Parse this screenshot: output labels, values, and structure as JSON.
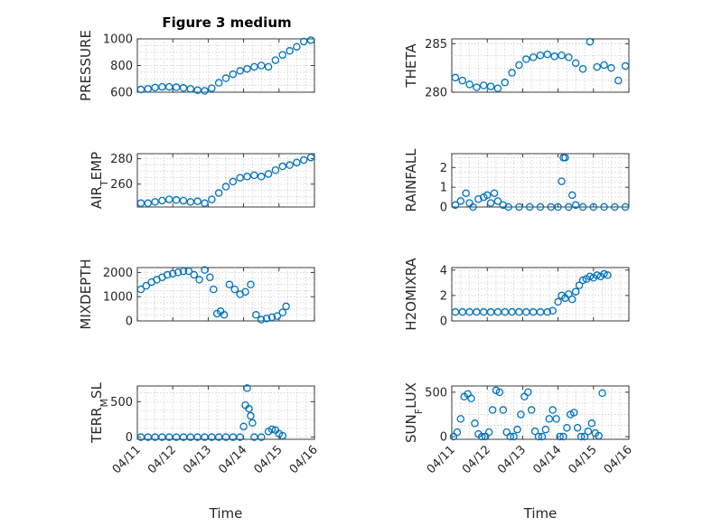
{
  "figure": {
    "title": "Figure 3 medium"
  },
  "chart_data": [
    {
      "type": "scatter",
      "panel": "pressure",
      "ylabel": "PRESSURE",
      "xlabel": "",
      "ylim": [
        600,
        1000
      ],
      "yticks": [
        600,
        800,
        1000
      ],
      "ytick_labels": [
        "600",
        "800",
        "1000"
      ],
      "xlim": [
        0,
        5
      ],
      "grid": true,
      "marker": "open-circle",
      "color": "#0072BD",
      "points": [
        [
          0.1,
          620
        ],
        [
          0.3,
          625
        ],
        [
          0.5,
          635
        ],
        [
          0.7,
          640
        ],
        [
          0.9,
          640
        ],
        [
          1.1,
          637
        ],
        [
          1.3,
          632
        ],
        [
          1.5,
          625
        ],
        [
          1.7,
          615
        ],
        [
          1.9,
          610
        ],
        [
          2.1,
          630
        ],
        [
          2.3,
          670
        ],
        [
          2.5,
          705
        ],
        [
          2.7,
          735
        ],
        [
          2.9,
          760
        ],
        [
          3.1,
          775
        ],
        [
          3.3,
          790
        ],
        [
          3.5,
          800
        ],
        [
          3.7,
          790
        ],
        [
          3.9,
          840
        ],
        [
          4.1,
          880
        ],
        [
          4.3,
          910
        ],
        [
          4.5,
          940
        ],
        [
          4.7,
          980
        ],
        [
          4.9,
          990
        ]
      ]
    },
    {
      "type": "scatter",
      "panel": "theta",
      "ylabel": "THETA",
      "xlabel": "",
      "ylim": [
        280,
        285.5
      ],
      "yticks": [
        280,
        285
      ],
      "ytick_labels": [
        "280",
        "285"
      ],
      "xlim": [
        0,
        5
      ],
      "grid": true,
      "marker": "open-circle",
      "color": "#0072BD",
      "points": [
        [
          0.1,
          281.5
        ],
        [
          0.3,
          281.2
        ],
        [
          0.5,
          280.8
        ],
        [
          0.7,
          280.5
        ],
        [
          0.9,
          280.7
        ],
        [
          1.1,
          280.6
        ],
        [
          1.3,
          280.4
        ],
        [
          1.5,
          281.0
        ],
        [
          1.7,
          282.0
        ],
        [
          1.9,
          282.8
        ],
        [
          2.1,
          283.4
        ],
        [
          2.3,
          283.6
        ],
        [
          2.5,
          283.8
        ],
        [
          2.7,
          283.9
        ],
        [
          2.9,
          283.7
        ],
        [
          3.1,
          283.8
        ],
        [
          3.3,
          283.6
        ],
        [
          3.5,
          283.0
        ],
        [
          3.7,
          282.4
        ],
        [
          3.9,
          285.2
        ],
        [
          4.1,
          282.6
        ],
        [
          4.3,
          282.8
        ],
        [
          4.5,
          282.5
        ],
        [
          4.7,
          281.2
        ],
        [
          4.9,
          282.7
        ]
      ]
    },
    {
      "type": "scatter",
      "panel": "air-temp",
      "ylabel": "AIR_TEMP",
      "xlabel": "",
      "ylim": [
        242,
        284
      ],
      "yticks": [
        260,
        280
      ],
      "ytick_labels": [
        "260",
        "280"
      ],
      "xlim": [
        0,
        5
      ],
      "grid": true,
      "marker": "open-circle",
      "color": "#0072BD",
      "points": [
        [
          0.1,
          245
        ],
        [
          0.3,
          245
        ],
        [
          0.5,
          246
        ],
        [
          0.7,
          247
        ],
        [
          0.9,
          248
        ],
        [
          1.1,
          247.5
        ],
        [
          1.3,
          247
        ],
        [
          1.5,
          246
        ],
        [
          1.7,
          246.5
        ],
        [
          1.9,
          245
        ],
        [
          2.1,
          248
        ],
        [
          2.3,
          253
        ],
        [
          2.5,
          258
        ],
        [
          2.7,
          262
        ],
        [
          2.9,
          265
        ],
        [
          3.1,
          266
        ],
        [
          3.3,
          267
        ],
        [
          3.5,
          266
        ],
        [
          3.7,
          268
        ],
        [
          3.9,
          271
        ],
        [
          4.1,
          274
        ],
        [
          4.3,
          275
        ],
        [
          4.5,
          277
        ],
        [
          4.7,
          279
        ],
        [
          4.9,
          281
        ]
      ]
    },
    {
      "type": "scatter",
      "panel": "rainfall",
      "ylabel": "RAINFALL",
      "xlabel": "",
      "ylim": [
        0,
        2.7
      ],
      "yticks": [
        0,
        1,
        2
      ],
      "ytick_labels": [
        "0",
        "1",
        "2"
      ],
      "xlim": [
        0,
        5
      ],
      "grid": true,
      "marker": "open-circle",
      "color": "#0072BD",
      "points": [
        [
          0.1,
          0.1
        ],
        [
          0.25,
          0.3
        ],
        [
          0.4,
          0.7
        ],
        [
          0.5,
          0.2
        ],
        [
          0.6,
          0.0
        ],
        [
          0.75,
          0.4
        ],
        [
          0.9,
          0.5
        ],
        [
          1.0,
          0.6
        ],
        [
          1.1,
          0.2
        ],
        [
          1.2,
          0.7
        ],
        [
          1.3,
          0.3
        ],
        [
          1.45,
          0.1
        ],
        [
          1.6,
          0.0
        ],
        [
          1.9,
          0.0
        ],
        [
          2.2,
          0.0
        ],
        [
          2.5,
          0.0
        ],
        [
          2.8,
          0.0
        ],
        [
          3.0,
          0.0
        ],
        [
          3.1,
          1.3
        ],
        [
          3.15,
          2.5
        ],
        [
          3.2,
          2.5
        ],
        [
          3.3,
          0.0
        ],
        [
          3.4,
          0.6
        ],
        [
          3.5,
          0.1
        ],
        [
          3.7,
          0.0
        ],
        [
          4.0,
          0.0
        ],
        [
          4.3,
          0.0
        ],
        [
          4.6,
          0.0
        ],
        [
          4.9,
          0.0
        ]
      ]
    },
    {
      "type": "scatter",
      "panel": "mixdepth",
      "ylabel": "MIXDEPTH",
      "xlabel": "",
      "ylim": [
        0,
        2200
      ],
      "yticks": [
        0,
        1000,
        2000
      ],
      "ytick_labels": [
        "0",
        "1000",
        "2000"
      ],
      "xlim": [
        0,
        5
      ],
      "grid": true,
      "marker": "open-circle",
      "color": "#0072BD",
      "points": [
        [
          0.1,
          1300
        ],
        [
          0.25,
          1450
        ],
        [
          0.4,
          1600
        ],
        [
          0.55,
          1700
        ],
        [
          0.7,
          1800
        ],
        [
          0.85,
          1900
        ],
        [
          1.0,
          1950
        ],
        [
          1.15,
          2000
        ],
        [
          1.3,
          2050
        ],
        [
          1.45,
          2050
        ],
        [
          1.6,
          1900
        ],
        [
          1.75,
          1700
        ],
        [
          1.9,
          2100
        ],
        [
          2.05,
          1800
        ],
        [
          2.15,
          1300
        ],
        [
          2.25,
          300
        ],
        [
          2.35,
          400
        ],
        [
          2.45,
          250
        ],
        [
          2.6,
          1500
        ],
        [
          2.75,
          1300
        ],
        [
          2.9,
          1100
        ],
        [
          3.05,
          1200
        ],
        [
          3.2,
          1500
        ],
        [
          3.35,
          250
        ],
        [
          3.5,
          50
        ],
        [
          3.65,
          100
        ],
        [
          3.8,
          150
        ],
        [
          3.95,
          200
        ],
        [
          4.1,
          350
        ],
        [
          4.2,
          600
        ]
      ]
    },
    {
      "type": "scatter",
      "panel": "h2omixra",
      "ylabel": "H2OMIXRA",
      "xlabel": "",
      "ylim": [
        0,
        4.2
      ],
      "yticks": [
        0,
        2,
        4
      ],
      "ytick_labels": [
        "0",
        "2",
        "4"
      ],
      "xlim": [
        0,
        5
      ],
      "grid": true,
      "marker": "open-circle",
      "color": "#0072BD",
      "points": [
        [
          0.1,
          0.7
        ],
        [
          0.3,
          0.7
        ],
        [
          0.5,
          0.7
        ],
        [
          0.7,
          0.7
        ],
        [
          0.9,
          0.7
        ],
        [
          1.1,
          0.7
        ],
        [
          1.3,
          0.7
        ],
        [
          1.5,
          0.7
        ],
        [
          1.7,
          0.7
        ],
        [
          1.9,
          0.7
        ],
        [
          2.1,
          0.7
        ],
        [
          2.3,
          0.7
        ],
        [
          2.5,
          0.7
        ],
        [
          2.7,
          0.7
        ],
        [
          2.85,
          0.8
        ],
        [
          3.0,
          1.5
        ],
        [
          3.1,
          2.0
        ],
        [
          3.2,
          1.8
        ],
        [
          3.3,
          2.1
        ],
        [
          3.4,
          1.7
        ],
        [
          3.5,
          2.3
        ],
        [
          3.6,
          2.8
        ],
        [
          3.7,
          3.2
        ],
        [
          3.8,
          3.3
        ],
        [
          3.9,
          3.5
        ],
        [
          4.0,
          3.4
        ],
        [
          4.1,
          3.6
        ],
        [
          4.2,
          3.5
        ],
        [
          4.3,
          3.7
        ],
        [
          4.4,
          3.6
        ]
      ]
    },
    {
      "type": "scatter",
      "panel": "terr-msl",
      "ylabel": "TERR_MSL",
      "xlabel": "Time",
      "ylim": [
        -30,
        720
      ],
      "yticks": [
        0,
        500
      ],
      "ytick_labels": [
        "0",
        "500"
      ],
      "xlim": [
        0,
        5
      ],
      "xticks": [
        0,
        1,
        2,
        3,
        4,
        5
      ],
      "xtick_labels": [
        "04/11",
        "04/12",
        "04/13",
        "04/14",
        "04/15",
        "04/16"
      ],
      "grid": true,
      "marker": "open-circle",
      "color": "#0072BD",
      "points": [
        [
          0.1,
          0
        ],
        [
          0.3,
          0
        ],
        [
          0.5,
          0
        ],
        [
          0.7,
          0
        ],
        [
          0.9,
          0
        ],
        [
          1.1,
          0
        ],
        [
          1.3,
          0
        ],
        [
          1.5,
          0
        ],
        [
          1.7,
          0
        ],
        [
          1.9,
          0
        ],
        [
          2.1,
          0
        ],
        [
          2.3,
          0
        ],
        [
          2.5,
          0
        ],
        [
          2.7,
          0
        ],
        [
          2.9,
          0
        ],
        [
          3.0,
          150
        ],
        [
          3.05,
          450
        ],
        [
          3.1,
          690
        ],
        [
          3.15,
          400
        ],
        [
          3.2,
          300
        ],
        [
          3.25,
          200
        ],
        [
          3.3,
          0
        ],
        [
          3.5,
          0
        ],
        [
          3.7,
          80
        ],
        [
          3.8,
          110
        ],
        [
          3.9,
          100
        ],
        [
          4.0,
          50
        ],
        [
          4.1,
          20
        ]
      ]
    },
    {
      "type": "scatter",
      "panel": "sun-flux",
      "ylabel": "SUN_FLUX",
      "xlabel": "Time",
      "ylim": [
        -30,
        570
      ],
      "yticks": [
        0,
        500
      ],
      "ytick_labels": [
        "0",
        "500"
      ],
      "xlim": [
        0,
        5
      ],
      "xticks": [
        0,
        1,
        2,
        3,
        4,
        5
      ],
      "xtick_labels": [
        "04/11",
        "04/12",
        "04/13",
        "04/14",
        "04/15",
        "04/16"
      ],
      "grid": true,
      "marker": "open-circle",
      "color": "#0072BD",
      "points": [
        [
          0.05,
          0
        ],
        [
          0.15,
          50
        ],
        [
          0.25,
          200
        ],
        [
          0.35,
          450
        ],
        [
          0.45,
          480
        ],
        [
          0.55,
          430
        ],
        [
          0.65,
          150
        ],
        [
          0.75,
          30
        ],
        [
          0.85,
          0
        ],
        [
          0.95,
          0
        ],
        [
          1.05,
          50
        ],
        [
          1.15,
          300
        ],
        [
          1.25,
          520
        ],
        [
          1.35,
          500
        ],
        [
          1.45,
          300
        ],
        [
          1.55,
          50
        ],
        [
          1.65,
          0
        ],
        [
          1.75,
          0
        ],
        [
          1.85,
          80
        ],
        [
          1.95,
          250
        ],
        [
          2.05,
          450
        ],
        [
          2.15,
          500
        ],
        [
          2.25,
          300
        ],
        [
          2.35,
          60
        ],
        [
          2.45,
          0
        ],
        [
          2.55,
          0
        ],
        [
          2.65,
          80
        ],
        [
          2.75,
          200
        ],
        [
          2.85,
          300
        ],
        [
          2.95,
          200
        ],
        [
          3.05,
          0
        ],
        [
          3.15,
          0
        ],
        [
          3.25,
          100
        ],
        [
          3.35,
          250
        ],
        [
          3.45,
          270
        ],
        [
          3.55,
          100
        ],
        [
          3.65,
          0
        ],
        [
          3.75,
          0
        ],
        [
          3.85,
          60
        ],
        [
          3.95,
          150
        ],
        [
          4.05,
          40
        ],
        [
          4.15,
          10
        ],
        [
          4.25,
          490
        ]
      ]
    }
  ]
}
